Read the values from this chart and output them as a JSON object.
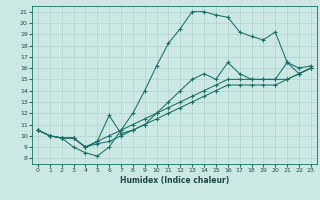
{
  "xlabel": "Humidex (Indice chaleur)",
  "bg_color": "#cce8e5",
  "line_color": "#1a6e65",
  "grid_color": "#aed4d0",
  "xlim": [
    -0.5,
    23.5
  ],
  "ylim": [
    7.5,
    21.5
  ],
  "xticks": [
    0,
    1,
    2,
    3,
    4,
    5,
    6,
    7,
    8,
    9,
    10,
    11,
    12,
    13,
    14,
    15,
    16,
    17,
    18,
    19,
    20,
    21,
    22,
    23
  ],
  "yticks": [
    8,
    9,
    10,
    11,
    12,
    13,
    14,
    15,
    16,
    17,
    18,
    19,
    20,
    21
  ],
  "lines": [
    {
      "x": [
        0,
        1,
        2,
        3,
        4,
        5,
        6,
        7,
        8,
        9,
        10,
        11,
        12,
        13,
        14,
        15,
        16,
        17,
        18,
        19,
        20,
        21,
        22,
        23
      ],
      "y": [
        10.5,
        10,
        9.8,
        9.0,
        8.5,
        8.2,
        9.0,
        10.5,
        12.0,
        14.0,
        16.2,
        18.2,
        19.5,
        21.0,
        21.0,
        20.7,
        20.5,
        19.2,
        18.8,
        18.5,
        19.2,
        16.5,
        16.0,
        16.2
      ]
    },
    {
      "x": [
        0,
        1,
        2,
        3,
        4,
        5,
        6,
        7,
        8,
        9,
        10,
        11,
        12,
        13,
        14,
        15,
        16,
        17,
        18,
        19,
        20,
        21,
        22,
        23
      ],
      "y": [
        10.5,
        10,
        9.8,
        9.8,
        9.0,
        9.5,
        11.8,
        10.2,
        10.5,
        11.0,
        12.0,
        13.0,
        14.0,
        15.0,
        15.5,
        15.0,
        16.5,
        15.5,
        15.0,
        15.0,
        15.0,
        16.5,
        15.5,
        16.0
      ]
    },
    {
      "x": [
        0,
        1,
        2,
        3,
        4,
        5,
        6,
        7,
        8,
        9,
        10,
        11,
        12,
        13,
        14,
        15,
        16,
        17,
        18,
        19,
        20,
        21,
        22,
        23
      ],
      "y": [
        10.5,
        10,
        9.8,
        9.8,
        9.0,
        9.5,
        10.0,
        10.5,
        11.0,
        11.5,
        12.0,
        12.5,
        13.0,
        13.5,
        14.0,
        14.5,
        15.0,
        15.0,
        15.0,
        15.0,
        15.0,
        15.0,
        15.5,
        16.0
      ]
    },
    {
      "x": [
        0,
        1,
        2,
        3,
        4,
        5,
        6,
        7,
        8,
        9,
        10,
        11,
        12,
        13,
        14,
        15,
        16,
        17,
        18,
        19,
        20,
        21,
        22,
        23
      ],
      "y": [
        10.5,
        10,
        9.8,
        9.8,
        9.0,
        9.3,
        9.5,
        10.0,
        10.5,
        11.0,
        11.5,
        12.0,
        12.5,
        13.0,
        13.5,
        14.0,
        14.5,
        14.5,
        14.5,
        14.5,
        14.5,
        15.0,
        15.5,
        16.0
      ]
    }
  ]
}
